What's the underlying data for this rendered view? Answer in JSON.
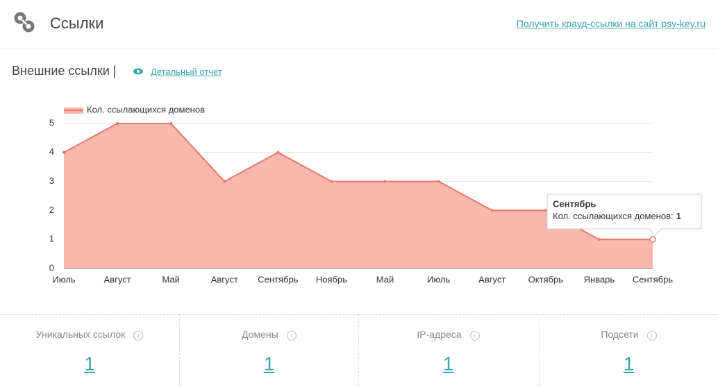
{
  "header": {
    "title": "Ссылки",
    "link": "Получить крауд-ссылки на сайт psy-key.ru"
  },
  "section": {
    "title": "Внешние ссылки |",
    "link": "Детальный отчет"
  },
  "chart_data": {
    "type": "area",
    "categories": [
      "Июль",
      "Август",
      "Май",
      "Август",
      "Сентябрь",
      "Ноябрь",
      "Май",
      "Июль",
      "Август",
      "Октябрь",
      "Январь",
      "Сентябрь"
    ],
    "series": [
      {
        "name": "Кол. ссылающихся доменов",
        "color": "#e8776a",
        "fill": "#f8b8ae",
        "values": [
          4,
          5,
          5,
          3,
          4,
          3,
          3,
          3,
          2,
          2,
          1,
          1
        ]
      }
    ],
    "ylim": [
      0,
      5
    ],
    "yticks": [
      0,
      1,
      2,
      3,
      4,
      5
    ],
    "grid": true,
    "legend": "top-left",
    "tooltip": {
      "index": 11,
      "label": "Кол. ссылающихся доменов:"
    }
  },
  "stats": [
    {
      "label": "Уникальных ссылок",
      "value": "1"
    },
    {
      "label": "Домены",
      "value": "1"
    },
    {
      "label": "IP-адреса",
      "value": "1"
    },
    {
      "label": "Подсети",
      "value": "1"
    }
  ]
}
